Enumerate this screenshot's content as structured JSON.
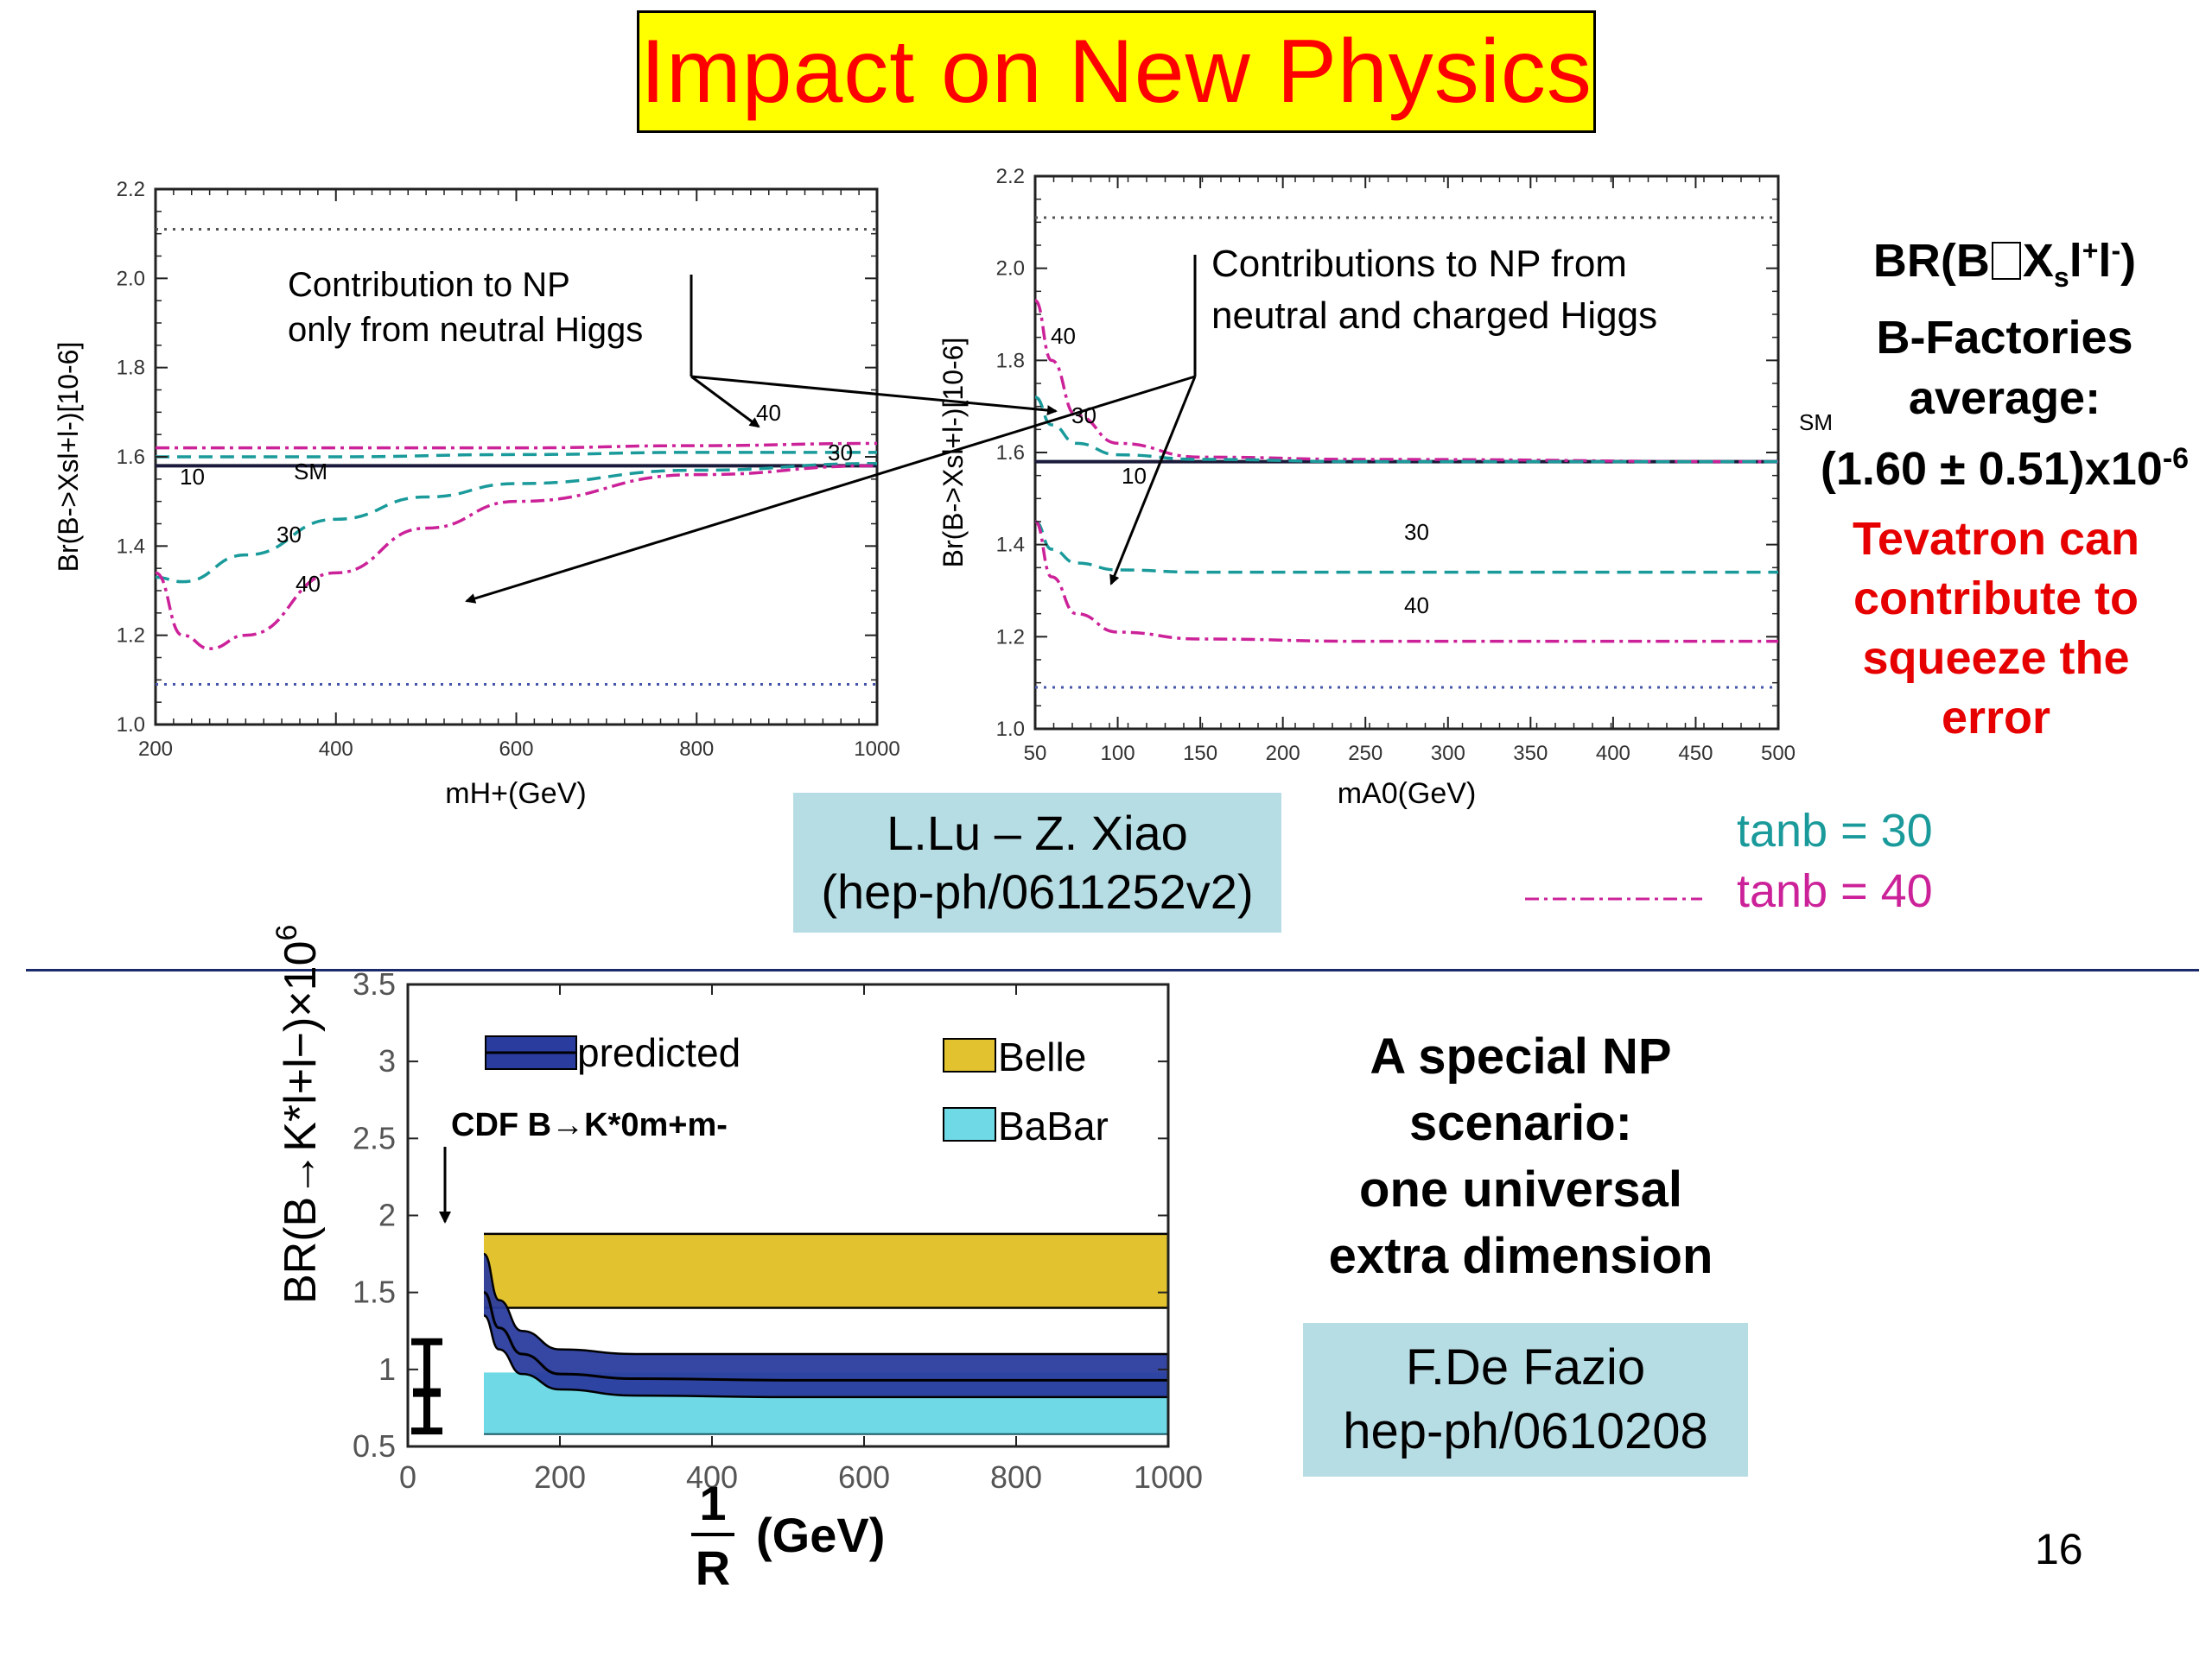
{
  "title": "Impact on New Physics",
  "top_side": {
    "br_title": "BR(B→Xsl+l-)",
    "br_label_parts": [
      "BR(B",
      "X",
      "s",
      "l",
      "+",
      "l",
      "-",
      ")"
    ],
    "line2": "B-Factories",
    "line3": "average:",
    "value_main": "(1.60 ± 0.51)x10",
    "value_exp": "-6",
    "tevatron": [
      "Tevatron can",
      "contribute to",
      "squeeze the",
      "error"
    ]
  },
  "legend_tanb": {
    "line30": "tanb = 30",
    "line40": "tanb = 40",
    "color30": "#1a9a9a",
    "color40": "#cc2299"
  },
  "ref_top": {
    "line1": "L.Lu – Z. Xiao",
    "line2": "(hep-ph/0611252v2)"
  },
  "ref_bottom": {
    "line1": "F.De Fazio",
    "line2": "hep-ph/0610208"
  },
  "bottom_side": [
    "A special NP",
    "scenario:",
    "one universal",
    "extra dimension"
  ],
  "page_number": "16",
  "chart_data": [
    {
      "type": "line",
      "xlabel": "mH+(GeV)",
      "ylabel": "Br(B->Xsl+l-)[10-6]",
      "xlim": [
        200,
        1000
      ],
      "ylim": [
        1.0,
        2.2
      ],
      "x_ticks": [
        "200",
        "400",
        "600",
        "800",
        "1000"
      ],
      "y_ticks": [
        "1.0",
        "1.2",
        "1.4",
        "1.6",
        "1.8",
        "2.0",
        "2.2"
      ],
      "annotation": [
        "Contribution to NP",
        "only from neutral Higgs"
      ],
      "reference_lines": [
        {
          "y": 2.11,
          "style": "dotted"
        },
        {
          "y": 1.09,
          "style": "dotted"
        },
        {
          "y": 1.58,
          "style": "solid",
          "label": "SM"
        }
      ],
      "curve_labels": [
        "10",
        "SM",
        "30",
        "40",
        "40",
        "30"
      ],
      "series": [
        {
          "x": [
            200,
            300,
            400,
            600,
            800,
            1000
          ],
          "values": [
            1.62,
            1.62,
            1.62,
            1.62,
            1.625,
            1.63
          ],
          "style": "dashdot"
        },
        {
          "x": [
            200,
            300,
            400,
            600,
            800,
            1000
          ],
          "values": [
            1.6,
            1.6,
            1.6,
            1.605,
            1.61,
            1.61
          ],
          "style": "dashed"
        },
        {
          "x": [
            200,
            230,
            300,
            400,
            500,
            600,
            800,
            1000
          ],
          "values": [
            1.33,
            1.32,
            1.38,
            1.46,
            1.51,
            1.54,
            1.57,
            1.585
          ],
          "style": "dashed"
        },
        {
          "x": [
            200,
            230,
            260,
            300,
            400,
            500,
            600,
            800,
            1000
          ],
          "values": [
            1.34,
            1.2,
            1.17,
            1.2,
            1.34,
            1.44,
            1.5,
            1.56,
            1.58
          ],
          "style": "dashdot"
        }
      ]
    },
    {
      "type": "line",
      "xlabel": "mA0(GeV)",
      "ylabel": "Br(B->Xsl+l-)[10-6]",
      "xlim": [
        50,
        500
      ],
      "ylim": [
        1.0,
        2.2
      ],
      "x_ticks": [
        "50",
        "100",
        "150",
        "200",
        "250",
        "300",
        "350",
        "400",
        "450",
        "500"
      ],
      "y_ticks": [
        "1.0",
        "1.2",
        "1.4",
        "1.6",
        "1.8",
        "2.0",
        "2.2"
      ],
      "annotation": [
        "Contributions to NP from",
        "neutral and charged Higgs"
      ],
      "reference_lines": [
        {
          "y": 2.11,
          "style": "dotted"
        },
        {
          "y": 1.09,
          "style": "dotted"
        },
        {
          "y": 1.58,
          "style": "solid",
          "label": "SM"
        }
      ],
      "curve_labels": [
        "40",
        "30",
        "SM",
        "10",
        "30",
        "40"
      ],
      "series": [
        {
          "x": [
            50,
            60,
            75,
            100,
            150,
            250,
            500
          ],
          "values": [
            1.93,
            1.8,
            1.68,
            1.62,
            1.59,
            1.585,
            1.58
          ],
          "style": "dashdot"
        },
        {
          "x": [
            50,
            60,
            75,
            100,
            150,
            250,
            500
          ],
          "values": [
            1.72,
            1.66,
            1.62,
            1.595,
            1.585,
            1.58,
            1.58
          ],
          "style": "dashed"
        },
        {
          "x": [
            50,
            60,
            75,
            100,
            150,
            250,
            500
          ],
          "values": [
            1.45,
            1.39,
            1.36,
            1.345,
            1.34,
            1.34,
            1.34
          ],
          "style": "dashed"
        },
        {
          "x": [
            50,
            60,
            75,
            100,
            150,
            250,
            500
          ],
          "values": [
            1.45,
            1.33,
            1.25,
            1.21,
            1.195,
            1.19,
            1.19
          ],
          "style": "dashdot"
        }
      ]
    },
    {
      "type": "area",
      "xlabel_num": "1",
      "xlabel_den": "R",
      "xlabel_unit": "(GeV)",
      "ylabel": "BR(B→K*l+l−)×10",
      "ylabel_exp": "6",
      "xlim": [
        0,
        1000
      ],
      "ylim": [
        0.5,
        3.5
      ],
      "x_ticks": [
        "0",
        "200",
        "400",
        "600",
        "800",
        "1000"
      ],
      "y_ticks": [
        "0.5",
        "1",
        "1.5",
        "2",
        "2.5",
        "3",
        "3.5"
      ],
      "legend": [
        "predicted",
        "Belle",
        "BaBar"
      ],
      "colors": {
        "predicted": "#2a3c9e",
        "belle": "#e2c22e",
        "babar": "#6fd9e6"
      },
      "cdf_label": "CDF B→K*0m+m-",
      "cdf_point": {
        "x": 25,
        "y": 0.85,
        "low": 0.6,
        "high": 1.18
      },
      "belle_band": [
        1.4,
        1.88
      ],
      "babar_band": [
        0.58,
        0.98
      ],
      "predicted_x": [
        100,
        120,
        150,
        200,
        300,
        500,
        1000
      ],
      "predicted_low": [
        1.35,
        1.13,
        0.97,
        0.87,
        0.83,
        0.82,
        0.82
      ],
      "predicted_mid": [
        1.5,
        1.27,
        1.1,
        0.97,
        0.94,
        0.93,
        0.93
      ],
      "predicted_high": [
        1.75,
        1.45,
        1.25,
        1.13,
        1.1,
        1.1,
        1.1
      ]
    }
  ]
}
